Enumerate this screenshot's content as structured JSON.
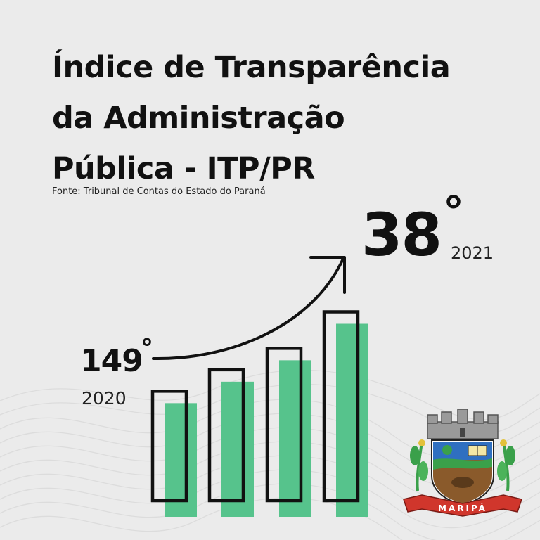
{
  "title": {
    "line1": "Índice de Transparência",
    "line2": "da Administração",
    "line3": "Pública - ITP/PR"
  },
  "source": "Fonte: Tribunal de Contas do Estado do Paraná",
  "ranking": {
    "before": {
      "rank": "149",
      "degree": "°",
      "year": "2020"
    },
    "after": {
      "rank": "38",
      "degree": "°",
      "year": "2021"
    }
  },
  "colors": {
    "background": "#ebebeb",
    "bar_fill": "#56c38c",
    "outline": "#111111",
    "crest_red": "#d0362c",
    "crest_blue": "#2f6fc0",
    "crest_green": "#3aa04a"
  },
  "bars": {
    "count": 4,
    "relative_heights": [
      0.53,
      0.63,
      0.73,
      0.9
    ]
  },
  "crest": {
    "banner_text": "MARIPÁ",
    "icon": "municipal-coat-of-arms"
  }
}
